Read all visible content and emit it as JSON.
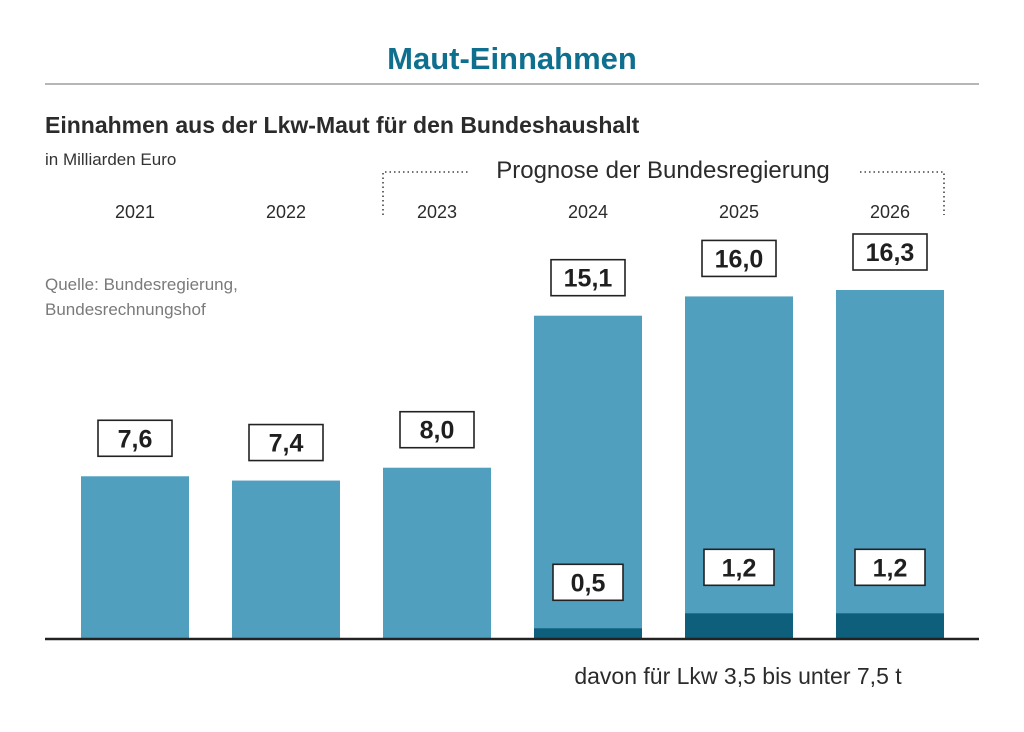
{
  "header": {
    "title": "Maut-Einnahmen",
    "subtitle": "Einnahmen aus der Lkw-Maut für den Bundeshaushalt",
    "unit": "in Milliarden Euro",
    "source_line1": "Quelle: Bundesregierung,",
    "source_line2": "Bundesrechnungshof",
    "forecast_label": "Prognose der Bundesregierung",
    "sub_series_note": "davon für Lkw 3,5 bis unter 7,5 t"
  },
  "colors": {
    "title": "#0e6f8f",
    "bar_total": "#519fbf",
    "bar_sub": "#0d5f7c",
    "text": "#2b2b2b"
  },
  "chart_data": {
    "type": "bar",
    "categories": [
      "2021",
      "2022",
      "2023",
      "2024",
      "2025",
      "2026"
    ],
    "series": [
      {
        "values": [
          7.6,
          7.4,
          8.0,
          15.1,
          16.0,
          16.3
        ]
      },
      {
        "name": "davon für Lkw 3,5 bis unter 7,5 t",
        "values": [
          null,
          null,
          null,
          0.5,
          1.2,
          1.2
        ]
      }
    ],
    "labels_total": [
      "7,6",
      "7,4",
      "8,0",
      "15,1",
      "16,0",
      "16,3"
    ],
    "labels_sub": [
      null,
      null,
      null,
      "0,5",
      "1,2",
      "1,2"
    ],
    "forecast_categories": [
      "2023",
      "2024",
      "2025",
      "2026"
    ],
    "ylim": [
      0,
      16.3
    ],
    "grid": false,
    "legend": "none"
  }
}
